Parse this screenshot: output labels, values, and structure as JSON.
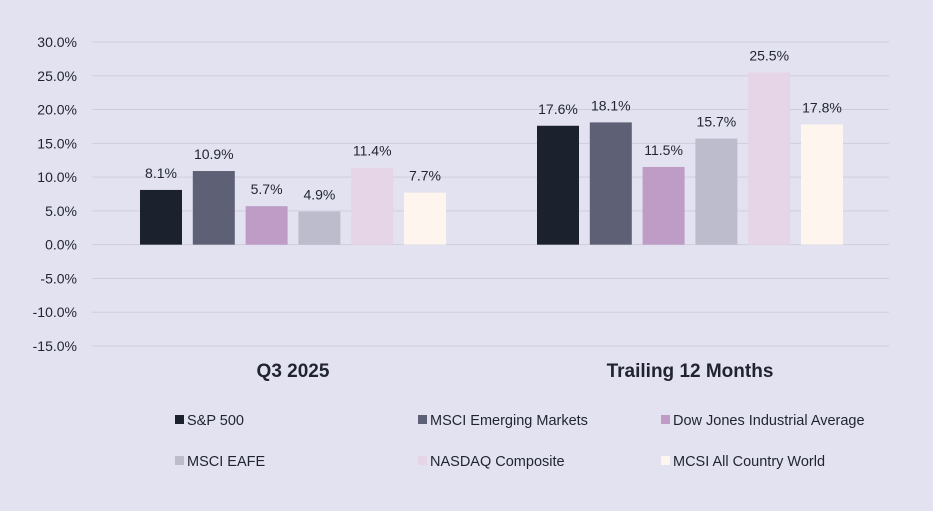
{
  "chart_data": {
    "type": "bar",
    "title": "",
    "xlabel": "",
    "ylabel": "",
    "ylim": [
      -15,
      30
    ],
    "yticks": [
      30,
      25,
      20,
      15,
      10,
      5,
      0,
      -5,
      -10,
      -15
    ],
    "ytick_labels": [
      "30.0%",
      "25.0%",
      "20.0%",
      "15.0%",
      "10.0%",
      "5.0%",
      "0.0%",
      "-5.0%",
      "-10.0%",
      "-15.0%"
    ],
    "categories": [
      "Q3 2025",
      "Trailing 12 Months"
    ],
    "series": [
      {
        "name": "S&P 500",
        "color": "#1c222d",
        "values": [
          8.1,
          17.6
        ],
        "labels": [
          "8.1%",
          "17.6%"
        ]
      },
      {
        "name": "MSCI Emerging Markets",
        "color": "#5e6175",
        "values": [
          10.9,
          18.1
        ],
        "labels": [
          "10.9%",
          "18.1%"
        ]
      },
      {
        "name": "Dow Jones Industrial Average",
        "color": "#bf9cc5",
        "values": [
          5.7,
          11.5
        ],
        "labels": [
          "5.7%",
          "11.5%"
        ]
      },
      {
        "name": "MSCI EAFE",
        "color": "#bdbccd",
        "values": [
          4.9,
          15.7
        ],
        "labels": [
          "4.9%",
          "15.7%"
        ]
      },
      {
        "name": "NASDAQ Composite",
        "color": "#e5d5e7",
        "values": [
          11.4,
          25.5
        ],
        "labels": [
          "11.4%",
          "25.5%"
        ]
      },
      {
        "name": "MCSI All Country World",
        "color": "#fdf5ee",
        "values": [
          7.7,
          17.8
        ],
        "labels": [
          "7.7%",
          "17.8%"
        ]
      }
    ],
    "grid": true,
    "legend_position": "bottom"
  },
  "colors": {
    "background": "#e3e2f0",
    "gridline": "#cfcedc",
    "text": "#1f2430"
  }
}
